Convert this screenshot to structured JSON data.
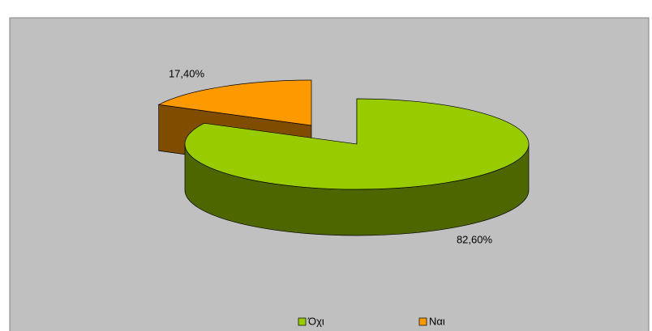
{
  "chart_data": {
    "type": "pie3d",
    "categories": [
      "Όχι",
      "Ναι"
    ],
    "values": [
      82.6,
      17.4
    ],
    "value_labels": [
      "82,60%",
      "17,40%"
    ],
    "colors": [
      "#99cc00",
      "#ff9900"
    ],
    "side_colors": [
      "#4d6600",
      "#804d00"
    ],
    "exploded": [
      false,
      true
    ]
  }
}
